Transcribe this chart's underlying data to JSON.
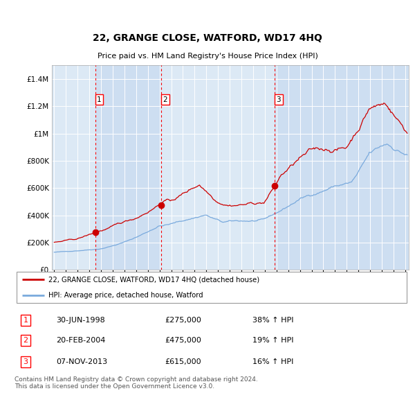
{
  "title": "22, GRANGE CLOSE, WATFORD, WD17 4HQ",
  "subtitle": "Price paid vs. HM Land Registry's House Price Index (HPI)",
  "footer": "Contains HM Land Registry data © Crown copyright and database right 2024.\nThis data is licensed under the Open Government Licence v3.0.",
  "legend_label_red": "22, GRANGE CLOSE, WATFORD, WD17 4HQ (detached house)",
  "legend_label_blue": "HPI: Average price, detached house, Watford",
  "transactions": [
    {
      "num": 1,
      "date": "30-JUN-1998",
      "price": 275000,
      "hpi_diff": "38% ↑ HPI",
      "year": 1998.5
    },
    {
      "num": 2,
      "date": "20-FEB-2004",
      "price": 475000,
      "hpi_diff": "19% ↑ HPI",
      "year": 2004.125
    },
    {
      "num": 3,
      "date": "07-NOV-2013",
      "price": 615000,
      "hpi_diff": "16% ↑ HPI",
      "year": 2013.833
    }
  ],
  "ylim": [
    0,
    1500000
  ],
  "xlim_start": 1994.8,
  "xlim_end": 2025.3,
  "background_color": "#dce9f5",
  "red_color": "#cc0000",
  "blue_color": "#7aaadd",
  "shade_color": "#c8daf0",
  "grid_color": "#ffffff",
  "yticks": [
    0,
    200000,
    400000,
    600000,
    800000,
    1000000,
    1200000,
    1400000
  ],
  "ytick_labels": [
    "£0",
    "£200K",
    "£400K",
    "£600K",
    "£800K",
    "£1M",
    "£1.2M",
    "£1.4M"
  ]
}
